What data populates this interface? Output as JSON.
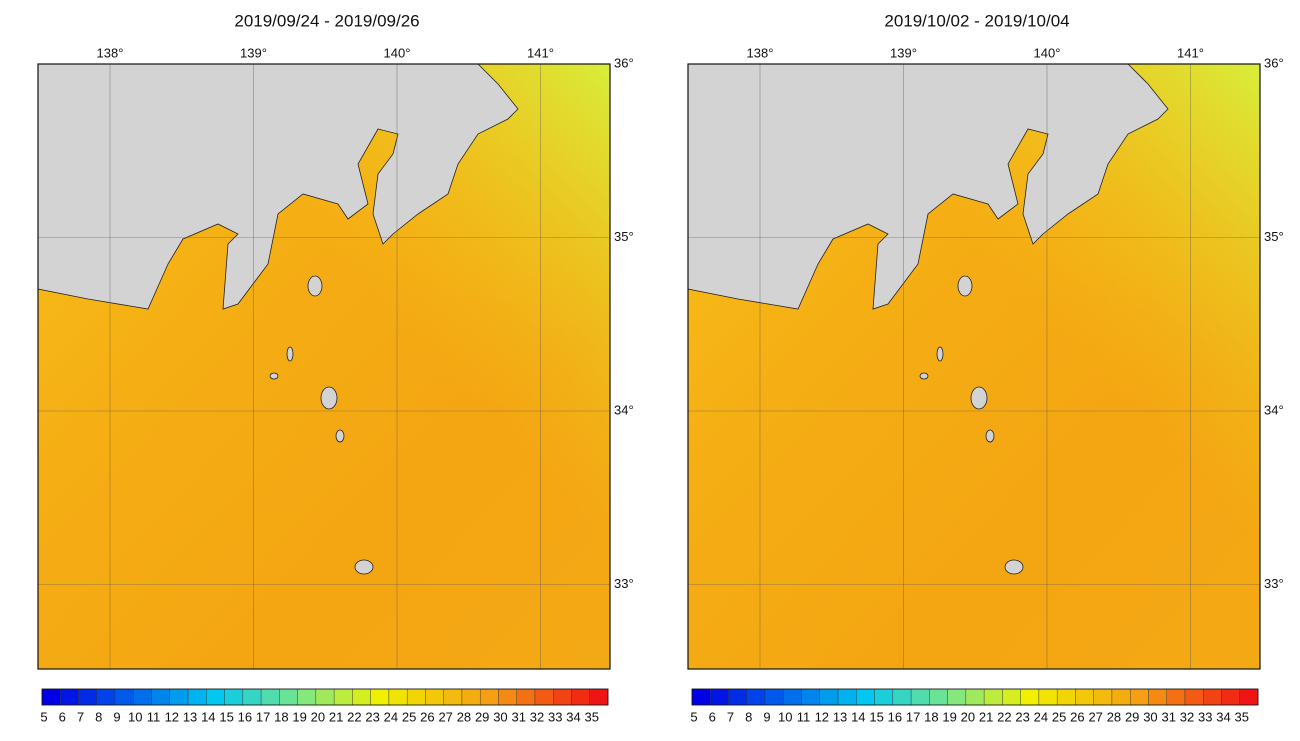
{
  "panels": [
    {
      "title": "2019/09/24 - 2019/09/26",
      "lon_labels": [
        "138°",
        "139°",
        "140°",
        "141°"
      ],
      "lat_labels": [
        "36°",
        "35°",
        "34°",
        "33°"
      ],
      "colorbar": {
        "ticks": [
          5,
          6,
          7,
          8,
          9,
          10,
          11,
          12,
          13,
          14,
          15,
          16,
          17,
          18,
          19,
          20,
          21,
          22,
          23,
          24,
          25,
          26,
          27,
          28,
          29,
          30,
          31,
          32,
          33,
          34,
          35
        ]
      }
    },
    {
      "title": "2019/10/02 - 2019/10/04",
      "lon_labels": [
        "138°",
        "139°",
        "140°",
        "141°"
      ],
      "lat_labels": [
        "36°",
        "35°",
        "34°",
        "33°"
      ],
      "colorbar": {
        "ticks": [
          5,
          6,
          7,
          8,
          9,
          10,
          11,
          12,
          13,
          14,
          15,
          16,
          17,
          18,
          19,
          20,
          21,
          22,
          23,
          24,
          25,
          26,
          27,
          28,
          29,
          30,
          31,
          32,
          33,
          34,
          35
        ]
      }
    }
  ]
}
